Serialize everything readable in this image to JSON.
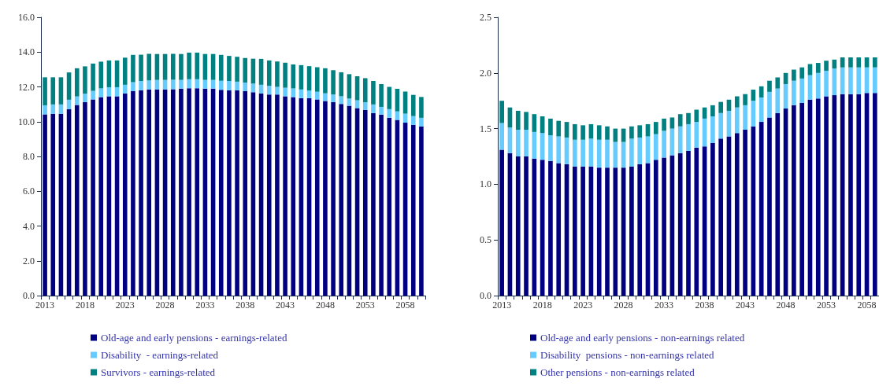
{
  "chart_data": [
    {
      "type": "bar",
      "stacked": true,
      "legend": "bottom",
      "grid": false,
      "categories": [
        "2013",
        null,
        null,
        null,
        null,
        "2018",
        null,
        null,
        null,
        null,
        "2023",
        null,
        null,
        null,
        null,
        "2028",
        null,
        null,
        null,
        null,
        "2033",
        null,
        null,
        null,
        null,
        "2038",
        null,
        null,
        null,
        null,
        "2043",
        null,
        null,
        null,
        null,
        "2048",
        null,
        null,
        null,
        null,
        "2053",
        null,
        null,
        null,
        null,
        "2058",
        null,
        null
      ],
      "ylim": [
        0,
        16
      ],
      "yticks": [
        {
          "value": 0,
          "label": "0.0"
        },
        {
          "value": 2,
          "label": "2.0"
        },
        {
          "value": 4,
          "label": "4.0"
        },
        {
          "value": 6,
          "label": "6.0"
        },
        {
          "value": 8,
          "label": "8.0"
        },
        {
          "value": 10,
          "label": "10.0"
        },
        {
          "value": 12,
          "label": "12.0"
        },
        {
          "value": 14,
          "label": "14.0"
        },
        {
          "value": 16,
          "label": "16.0"
        }
      ],
      "series": [
        {
          "name": "Old-age and early pensions - earnings-related",
          "color": "#000080",
          "values": [
            10.42,
            10.45,
            10.45,
            10.71,
            10.96,
            11.12,
            11.28,
            11.41,
            11.46,
            11.46,
            11.62,
            11.75,
            11.8,
            11.85,
            11.85,
            11.85,
            11.87,
            11.9,
            11.92,
            11.92,
            11.9,
            11.9,
            11.83,
            11.8,
            11.8,
            11.75,
            11.69,
            11.62,
            11.56,
            11.56,
            11.46,
            11.41,
            11.35,
            11.35,
            11.28,
            11.19,
            11.12,
            11.02,
            10.91,
            10.78,
            10.67,
            10.5,
            10.41,
            10.23,
            10.1,
            9.94,
            9.82,
            9.72
          ]
        },
        {
          "name": "Disability  - earnings-related",
          "color": "#66ccff",
          "values": [
            0.52,
            0.54,
            0.54,
            0.55,
            0.49,
            0.49,
            0.49,
            0.5,
            0.52,
            0.52,
            0.5,
            0.52,
            0.54,
            0.52,
            0.55,
            0.55,
            0.54,
            0.5,
            0.52,
            0.52,
            0.5,
            0.5,
            0.52,
            0.54,
            0.5,
            0.5,
            0.5,
            0.5,
            0.5,
            0.44,
            0.49,
            0.5,
            0.5,
            0.44,
            0.44,
            0.44,
            0.44,
            0.44,
            0.42,
            0.45,
            0.45,
            0.49,
            0.44,
            0.49,
            0.49,
            0.52,
            0.5,
            0.5
          ]
        },
        {
          "name": "Survivors - earnings-related",
          "color": "#008080",
          "values": [
            1.61,
            1.56,
            1.56,
            1.57,
            1.62,
            1.57,
            1.57,
            1.54,
            1.54,
            1.54,
            1.56,
            1.57,
            1.51,
            1.53,
            1.49,
            1.49,
            1.49,
            1.49,
            1.53,
            1.53,
            1.49,
            1.49,
            1.49,
            1.44,
            1.43,
            1.41,
            1.43,
            1.49,
            1.46,
            1.46,
            1.44,
            1.38,
            1.4,
            1.4,
            1.41,
            1.44,
            1.4,
            1.38,
            1.4,
            1.38,
            1.38,
            1.35,
            1.31,
            1.28,
            1.3,
            1.27,
            1.22,
            1.2
          ]
        }
      ]
    },
    {
      "type": "bar",
      "stacked": true,
      "legend": "bottom",
      "grid": false,
      "categories": [
        "2013",
        null,
        null,
        null,
        null,
        "2018",
        null,
        null,
        null,
        null,
        "2023",
        null,
        null,
        null,
        null,
        "2028",
        null,
        null,
        null,
        null,
        "2033",
        null,
        null,
        null,
        null,
        "2038",
        null,
        null,
        null,
        null,
        "2043",
        null,
        null,
        null,
        null,
        "2048",
        null,
        null,
        null,
        null,
        "2053",
        null,
        null,
        null,
        null,
        "2058",
        null
      ],
      "ylim": [
        0,
        2.5
      ],
      "yticks": [
        {
          "value": 0,
          "label": "0.0"
        },
        {
          "value": 0.5,
          "label": "0.5"
        },
        {
          "value": 1,
          "label": "1.0"
        },
        {
          "value": 1.5,
          "label": "1.5"
        },
        {
          "value": 2,
          "label": "2.0"
        },
        {
          "value": 2.5,
          "label": "2.5"
        }
      ],
      "series": [
        {
          "name": "Old-age and early pensions - non-earnings related",
          "color": "#000080",
          "values": [
            1.31,
            1.28,
            1.25,
            1.25,
            1.23,
            1.22,
            1.21,
            1.19,
            1.18,
            1.16,
            1.16,
            1.16,
            1.15,
            1.15,
            1.15,
            1.15,
            1.16,
            1.18,
            1.19,
            1.22,
            1.24,
            1.26,
            1.28,
            1.3,
            1.33,
            1.34,
            1.37,
            1.41,
            1.43,
            1.46,
            1.49,
            1.52,
            1.56,
            1.6,
            1.64,
            1.68,
            1.71,
            1.73,
            1.76,
            1.77,
            1.79,
            1.8,
            1.81,
            1.81,
            1.81,
            1.82,
            1.82
          ]
        },
        {
          "name": "Disability  pensions - non-earnings related",
          "color": "#66ccff",
          "values": [
            0.24,
            0.23,
            0.24,
            0.24,
            0.24,
            0.24,
            0.23,
            0.24,
            0.24,
            0.24,
            0.24,
            0.25,
            0.25,
            0.25,
            0.23,
            0.23,
            0.25,
            0.24,
            0.24,
            0.23,
            0.24,
            0.24,
            0.24,
            0.24,
            0.23,
            0.25,
            0.24,
            0.23,
            0.23,
            0.23,
            0.22,
            0.23,
            0.22,
            0.23,
            0.22,
            0.22,
            0.22,
            0.22,
            0.22,
            0.23,
            0.23,
            0.24,
            0.24,
            0.24,
            0.24,
            0.23,
            0.23
          ]
        },
        {
          "name": "Other pensions - non-earnings related",
          "color": "#008080",
          "values": [
            0.2,
            0.18,
            0.17,
            0.16,
            0.16,
            0.15,
            0.15,
            0.14,
            0.14,
            0.14,
            0.13,
            0.13,
            0.13,
            0.12,
            0.12,
            0.12,
            0.11,
            0.11,
            0.11,
            0.11,
            0.11,
            0.1,
            0.11,
            0.1,
            0.11,
            0.1,
            0.1,
            0.1,
            0.1,
            0.1,
            0.1,
            0.1,
            0.1,
            0.1,
            0.1,
            0.1,
            0.1,
            0.1,
            0.1,
            0.09,
            0.09,
            0.08,
            0.09,
            0.09,
            0.09,
            0.09,
            0.09
          ]
        }
      ]
    }
  ]
}
